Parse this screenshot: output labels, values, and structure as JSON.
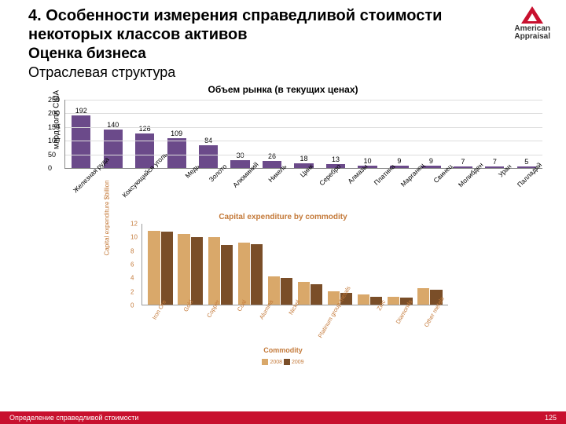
{
  "logo": {
    "line1": "American",
    "line2": "Appraisal",
    "triangle_color": "#c8102e"
  },
  "header": {
    "title": "4. Особенности измерения справедливой стоимости некоторых классов активов",
    "subtitle": "Оценка бизнеса",
    "section": "Отраслевая структура"
  },
  "chart1": {
    "type": "bar",
    "title": "Объем рынка (в текущих ценах)",
    "ylabel": "млрд долл США",
    "ylim": [
      0,
      250
    ],
    "ytick_step": 50,
    "bar_color": "#6b4a8a",
    "grid_color": "#dddddd",
    "categories": [
      "Железная руда",
      "Коксующийся уголь",
      "Медь",
      "Золото",
      "Алюминий",
      "Никель",
      "Цинк",
      "Серебро",
      "Алмазы",
      "Платина",
      "Марганец",
      "Свинец",
      "Молибден",
      "Уран",
      "Палладий"
    ],
    "values": [
      192,
      140,
      126,
      109,
      84,
      30,
      26,
      18,
      13,
      10,
      9,
      9,
      7,
      7,
      5
    ]
  },
  "chart2": {
    "type": "grouped-bar",
    "title": "Capital expenditure by commodity",
    "ylabel": "Capital expenditure $billion",
    "xlabel": "Commodity",
    "ylim": [
      0,
      12
    ],
    "ytick_step": 2,
    "text_color": "#c47a3a",
    "series": [
      {
        "name": "2008",
        "color": "#d9a86a"
      },
      {
        "name": "2009",
        "color": "#7a4e28"
      }
    ],
    "categories": [
      "Iron Ore",
      "Gold",
      "Copper",
      "Coal",
      "Alumina",
      "Nickel",
      "Platinum group metals",
      "Zinc",
      "Diamonds",
      "Other metals"
    ],
    "values": [
      [
        11.0,
        10.5,
        10.0,
        9.2,
        4.2,
        3.4,
        2.0,
        1.5,
        1.2,
        2.5
      ],
      [
        10.8,
        10.0,
        8.8,
        9.0,
        4.0,
        3.0,
        1.8,
        1.2,
        1.0,
        2.2
      ]
    ]
  },
  "footer": {
    "text": "Определение справедливой стоимости",
    "page": "125",
    "bg": "#c8102e"
  }
}
